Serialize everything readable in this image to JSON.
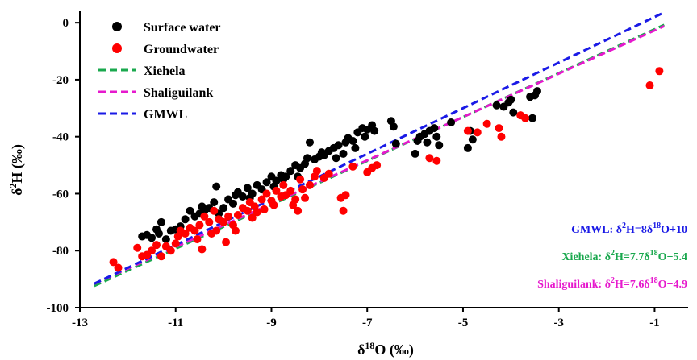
{
  "chart_data": {
    "type": "scatter",
    "xlabel_base": "δ",
    "xlabel_sup": "18",
    "xlabel_tail": "O (‰)",
    "ylabel_base": "δ",
    "ylabel_sup": "2",
    "ylabel_tail": "H (‰)",
    "xlim": [
      -13,
      -0.3
    ],
    "ylim": [
      -100,
      4
    ],
    "x_ticks": [
      {
        "value": -13,
        "label": "-13"
      },
      {
        "value": -11,
        "label": "-11"
      },
      {
        "value": -9,
        "label": "-9"
      },
      {
        "value": -7,
        "label": "-7"
      },
      {
        "value": -5,
        "label": "-5"
      },
      {
        "value": -3,
        "label": "-3"
      },
      {
        "value": -1,
        "label": "-1"
      }
    ],
    "y_ticks": [
      {
        "value": 0,
        "label": "0"
      },
      {
        "value": -20,
        "label": "-20"
      },
      {
        "value": -40,
        "label": "-40"
      },
      {
        "value": -60,
        "label": "-60"
      },
      {
        "value": -80,
        "label": "-80"
      },
      {
        "value": -100,
        "label": "-100"
      }
    ],
    "grid": false,
    "legend_position": "top-left",
    "series": [
      {
        "name": "Surface water",
        "kind": "points",
        "color": "#000000",
        "points": [
          [
            -11.7,
            -75
          ],
          [
            -11.6,
            -74.5
          ],
          [
            -11.5,
            -75.5
          ],
          [
            -11.4,
            -72.5
          ],
          [
            -11.3,
            -70
          ],
          [
            -11.35,
            -74
          ],
          [
            -11.2,
            -76
          ],
          [
            -11.1,
            -73
          ],
          [
            -11.0,
            -72.5
          ],
          [
            -10.9,
            -71.5
          ],
          [
            -10.8,
            -69
          ],
          [
            -10.7,
            -66
          ],
          [
            -10.6,
            -68
          ],
          [
            -10.5,
            -67
          ],
          [
            -10.45,
            -64.5
          ],
          [
            -10.4,
            -66
          ],
          [
            -10.3,
            -65
          ],
          [
            -10.2,
            -63
          ],
          [
            -10.15,
            -57.5
          ],
          [
            -10.1,
            -67
          ],
          [
            -10.0,
            -65
          ],
          [
            -9.9,
            -62
          ],
          [
            -9.8,
            -63.5
          ],
          [
            -9.75,
            -60.5
          ],
          [
            -9.7,
            -59.5
          ],
          [
            -9.6,
            -61
          ],
          [
            -9.5,
            -58
          ],
          [
            -9.45,
            -61.5
          ],
          [
            -9.4,
            -60
          ],
          [
            -9.3,
            -57
          ],
          [
            -9.2,
            -58.5
          ],
          [
            -9.1,
            -56
          ],
          [
            -9.0,
            -54
          ],
          [
            -8.95,
            -57.5
          ],
          [
            -8.9,
            -55.5
          ],
          [
            -8.8,
            -53.5
          ],
          [
            -8.75,
            -55
          ],
          [
            -8.7,
            -54
          ],
          [
            -8.6,
            -52
          ],
          [
            -8.5,
            -50
          ],
          [
            -8.45,
            -54
          ],
          [
            -8.4,
            -51
          ],
          [
            -8.3,
            -49.5
          ],
          [
            -8.25,
            -47.5
          ],
          [
            -8.2,
            -42
          ],
          [
            -8.1,
            -48
          ],
          [
            -8.0,
            -47
          ],
          [
            -7.95,
            -45.5
          ],
          [
            -7.9,
            -46.5
          ],
          [
            -7.8,
            -45
          ],
          [
            -7.7,
            -44
          ],
          [
            -7.65,
            -47.5
          ],
          [
            -7.6,
            -43
          ],
          [
            -7.5,
            -46
          ],
          [
            -7.45,
            -42
          ],
          [
            -7.4,
            -40.5
          ],
          [
            -7.3,
            -41.5
          ],
          [
            -7.25,
            -44
          ],
          [
            -7.2,
            -38.5
          ],
          [
            -7.1,
            -37
          ],
          [
            -7.05,
            -40
          ],
          [
            -7.0,
            -37.5
          ],
          [
            -6.9,
            -36
          ],
          [
            -6.85,
            -38
          ],
          [
            -6.5,
            -34.5
          ],
          [
            -6.45,
            -36.5
          ],
          [
            -6.4,
            -42.5
          ],
          [
            -6.0,
            -46
          ],
          [
            -5.95,
            -41.5
          ],
          [
            -5.9,
            -40
          ],
          [
            -5.8,
            -39
          ],
          [
            -5.75,
            -42
          ],
          [
            -5.7,
            -38
          ],
          [
            -5.6,
            -37
          ],
          [
            -5.55,
            -40
          ],
          [
            -5.5,
            -43
          ],
          [
            -5.25,
            -35
          ],
          [
            -4.9,
            -44
          ],
          [
            -4.85,
            -38
          ],
          [
            -4.8,
            -41
          ],
          [
            -4.3,
            -29
          ],
          [
            -4.15,
            -29.5
          ],
          [
            -4.05,
            -28
          ],
          [
            -4.0,
            -27
          ],
          [
            -3.95,
            -31.5
          ],
          [
            -3.6,
            -26
          ],
          [
            -3.55,
            -33.5
          ],
          [
            -3.5,
            -25.5
          ],
          [
            -3.45,
            -24
          ]
        ]
      },
      {
        "name": "Groundwater",
        "kind": "points",
        "color": "#ff0000",
        "points": [
          [
            -12.3,
            -84
          ],
          [
            -12.2,
            -86
          ],
          [
            -11.8,
            -79
          ],
          [
            -11.7,
            -82
          ],
          [
            -11.6,
            -81.5
          ],
          [
            -11.5,
            -80
          ],
          [
            -11.4,
            -78
          ],
          [
            -11.3,
            -82
          ],
          [
            -11.2,
            -78.5
          ],
          [
            -11.1,
            -80
          ],
          [
            -11.0,
            -77.5
          ],
          [
            -10.95,
            -75
          ],
          [
            -10.9,
            -73
          ],
          [
            -10.8,
            -74
          ],
          [
            -10.7,
            -72
          ],
          [
            -10.6,
            -73
          ],
          [
            -10.55,
            -76
          ],
          [
            -10.5,
            -71
          ],
          [
            -10.45,
            -79.5
          ],
          [
            -10.4,
            -68
          ],
          [
            -10.3,
            -70
          ],
          [
            -10.25,
            -74
          ],
          [
            -10.2,
            -66
          ],
          [
            -10.15,
            -73
          ],
          [
            -10.1,
            -69
          ],
          [
            -10.0,
            -70
          ],
          [
            -9.95,
            -77
          ],
          [
            -9.9,
            -68
          ],
          [
            -9.8,
            -71
          ],
          [
            -9.75,
            -73
          ],
          [
            -9.7,
            -67.5
          ],
          [
            -9.6,
            -65
          ],
          [
            -9.5,
            -66
          ],
          [
            -9.45,
            -63
          ],
          [
            -9.4,
            -68.5
          ],
          [
            -9.35,
            -64.5
          ],
          [
            -9.3,
            -66.5
          ],
          [
            -9.2,
            -62
          ],
          [
            -9.15,
            -65.5
          ],
          [
            -9.1,
            -60
          ],
          [
            -9.0,
            -62.5
          ],
          [
            -8.95,
            -64
          ],
          [
            -8.9,
            -59
          ],
          [
            -8.8,
            -61
          ],
          [
            -8.75,
            -57
          ],
          [
            -8.7,
            -60.5
          ],
          [
            -8.6,
            -59
          ],
          [
            -8.55,
            -64
          ],
          [
            -8.5,
            -62
          ],
          [
            -8.45,
            -66
          ],
          [
            -8.4,
            -55
          ],
          [
            -8.35,
            -58.5
          ],
          [
            -8.3,
            -61.5
          ],
          [
            -8.2,
            -57
          ],
          [
            -8.1,
            -54
          ],
          [
            -8.05,
            -52
          ],
          [
            -7.9,
            -54.5
          ],
          [
            -7.8,
            -53
          ],
          [
            -7.55,
            -61.5
          ],
          [
            -7.5,
            -66
          ],
          [
            -7.45,
            -60.5
          ],
          [
            -7.3,
            -50.5
          ],
          [
            -7.0,
            -52.5
          ],
          [
            -6.9,
            -51
          ],
          [
            -6.8,
            -50
          ],
          [
            -5.7,
            -47.5
          ],
          [
            -5.55,
            -48.5
          ],
          [
            -4.9,
            -38
          ],
          [
            -4.7,
            -38.5
          ],
          [
            -4.5,
            -35.5
          ],
          [
            -4.25,
            -37
          ],
          [
            -4.2,
            -40
          ],
          [
            -3.8,
            -32.5
          ],
          [
            -3.7,
            -33.5
          ],
          [
            -1.1,
            -22
          ],
          [
            -0.9,
            -17
          ]
        ]
      },
      {
        "name": "Xiehela",
        "kind": "line",
        "color": "#1aa84e",
        "slope": 7.7,
        "intercept": 5.4,
        "x_range": [
          -12.7,
          -0.8
        ]
      },
      {
        "name": "Shaliguilank",
        "kind": "line",
        "color": "#e619cd",
        "slope": 7.6,
        "intercept": 4.9,
        "x_range": [
          -12.7,
          -0.8
        ]
      },
      {
        "name": "GMWL",
        "kind": "line",
        "color": "#1a1ae6",
        "slope": 8,
        "intercept": 10,
        "x_range": [
          -12.7,
          -0.8
        ]
      }
    ],
    "annotations": [
      {
        "color": "#1a1ae6",
        "parts": [
          {
            "t": "GMWL: δ"
          },
          {
            "t": "2",
            "sup": true
          },
          {
            "t": "H=8δ"
          },
          {
            "t": "18",
            "sup": true
          },
          {
            "t": "O+10"
          }
        ]
      },
      {
        "color": "#1aa84e",
        "parts": [
          {
            "t": "Xiehela: δ"
          },
          {
            "t": "2",
            "sup": true
          },
          {
            "t": "H=7.7δ"
          },
          {
            "t": "18",
            "sup": true
          },
          {
            "t": "O+5.4"
          }
        ]
      },
      {
        "color": "#e619cd",
        "parts": [
          {
            "t": "Shaliguilank: δ"
          },
          {
            "t": "2",
            "sup": true
          },
          {
            "t": "H=7.6δ"
          },
          {
            "t": "18",
            "sup": true
          },
          {
            "t": "O+4.9"
          }
        ]
      }
    ]
  }
}
